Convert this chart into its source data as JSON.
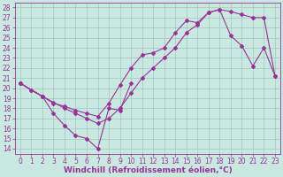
{
  "xlabel": "Windchill (Refroidissement éolien,°C)",
  "xlim": [
    -0.5,
    23.5
  ],
  "ylim": [
    13.5,
    28.5
  ],
  "xticks": [
    0,
    1,
    2,
    3,
    4,
    5,
    6,
    7,
    8,
    9,
    10,
    11,
    12,
    13,
    14,
    15,
    16,
    17,
    18,
    19,
    20,
    21,
    22,
    23
  ],
  "yticks": [
    14,
    15,
    16,
    17,
    18,
    19,
    20,
    21,
    22,
    23,
    24,
    25,
    26,
    27,
    28
  ],
  "bg_color": "#c8e8e0",
  "line_color": "#993399",
  "grid_color": "#a0c8c0",
  "line1_x": [
    0,
    1,
    2,
    3,
    4,
    5,
    6,
    7,
    8,
    9,
    10,
    11,
    12,
    13,
    14,
    15,
    16,
    17,
    18,
    19,
    20,
    21,
    22,
    23
  ],
  "line1_y": [
    20.5,
    19.8,
    19.2,
    18.6,
    18.0,
    17.5,
    17.0,
    16.5,
    17.0,
    18.0,
    19.5,
    21.0,
    22.0,
    23.0,
    24.0,
    25.5,
    26.3,
    27.5,
    27.8,
    27.6,
    27.3,
    27.0,
    27.0,
    21.2
  ],
  "line2_x": [
    0,
    1,
    2,
    3,
    4,
    5,
    6,
    7,
    8,
    9,
    10,
    11,
    12,
    13,
    14,
    15,
    16,
    17,
    18,
    19,
    20,
    21,
    22,
    23
  ],
  "line2_y": [
    20.5,
    19.8,
    19.2,
    18.5,
    18.2,
    17.8,
    17.5,
    17.2,
    18.5,
    20.3,
    22.0,
    23.3,
    23.5,
    24.0,
    25.5,
    26.7,
    26.5,
    27.5,
    27.8,
    25.2,
    24.2,
    22.2,
    24.0,
    21.2
  ],
  "line3_x": [
    0,
    2,
    3,
    4,
    5,
    6,
    7,
    8,
    9,
    10
  ],
  "line3_y": [
    20.5,
    19.2,
    17.5,
    16.3,
    15.3,
    15.0,
    14.0,
    18.0,
    17.8,
    20.5
  ],
  "font_size_ticks": 5.5,
  "font_size_label": 6.5,
  "marker": "D",
  "marker_size": 2.0,
  "linewidth": 0.8
}
